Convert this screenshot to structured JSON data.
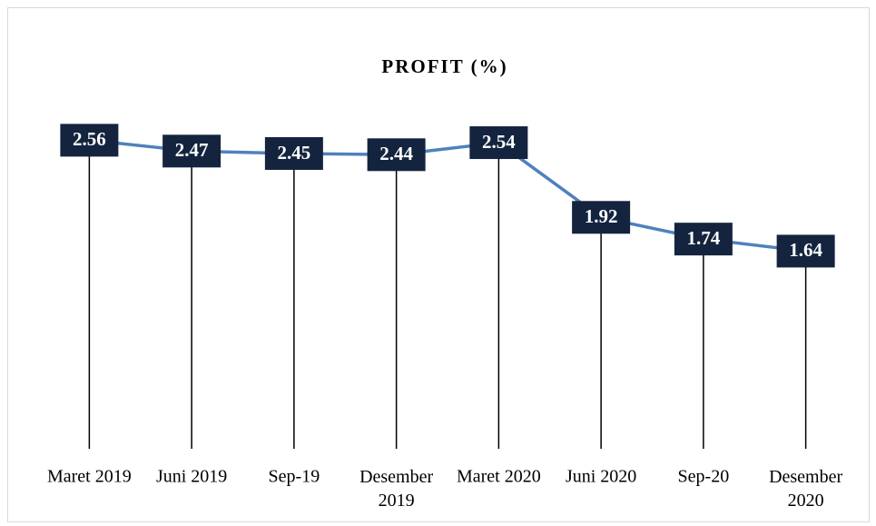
{
  "chart_data": {
    "type": "line",
    "title": "PROFIT (%)",
    "categories": [
      "Maret 2019",
      "Juni 2019",
      "Sep-19",
      "Desember 2019",
      "Maret 2020",
      "Juni 2020",
      "Sep-20",
      "Desember 2020"
    ],
    "values": [
      2.56,
      2.47,
      2.45,
      2.44,
      2.54,
      1.92,
      1.74,
      1.64
    ],
    "color": "#4f81bd",
    "label_color": "#14243f",
    "ylim": [
      0,
      3
    ]
  }
}
